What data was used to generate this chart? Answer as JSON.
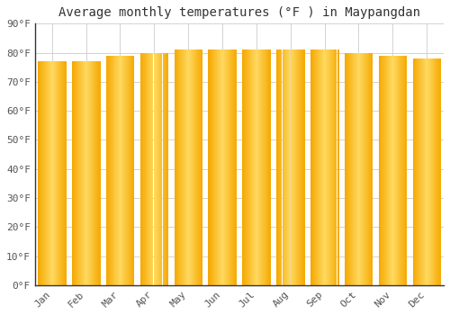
{
  "title": "Average monthly temperatures (°F ) in Maypangdan",
  "months": [
    "Jan",
    "Feb",
    "Mar",
    "Apr",
    "May",
    "Jun",
    "Jul",
    "Aug",
    "Sep",
    "Oct",
    "Nov",
    "Dec"
  ],
  "values": [
    77,
    77,
    79,
    80,
    81,
    81,
    81,
    81,
    81,
    80,
    79,
    78
  ],
  "bar_color_center": "#FFD060",
  "bar_color_edge": "#F5A800",
  "background_color": "#FFFFFF",
  "plot_bg_color": "#FFFFFF",
  "grid_color": "#CCCCCC",
  "title_fontsize": 10,
  "tick_fontsize": 8,
  "ylim": [
    0,
    90
  ],
  "yticks": [
    0,
    10,
    20,
    30,
    40,
    50,
    60,
    70,
    80,
    90
  ],
  "bar_width": 0.82,
  "spine_color": "#333333"
}
